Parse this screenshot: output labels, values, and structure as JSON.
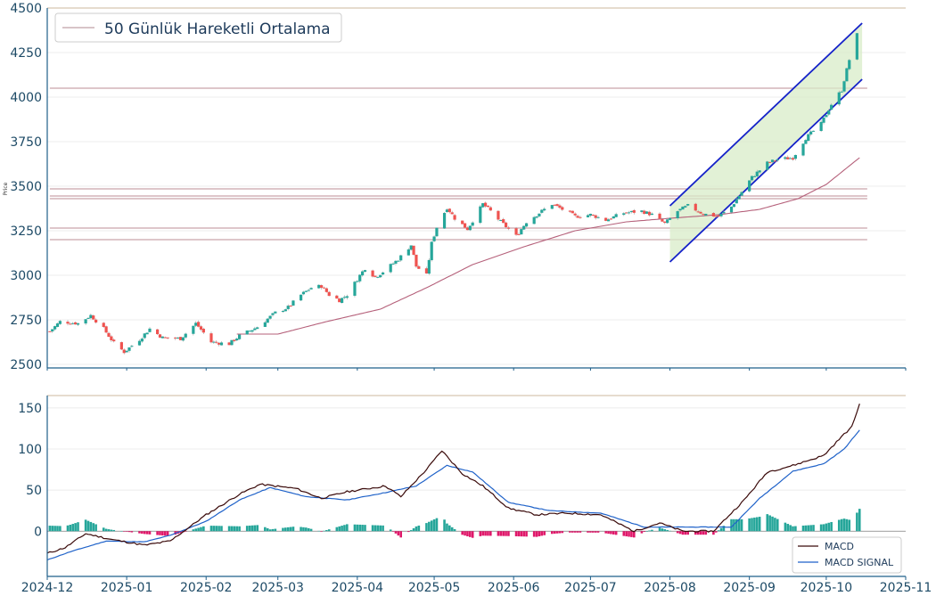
{
  "colors": {
    "up": "#26a69a",
    "down": "#ef5350",
    "ma": "#b5607a",
    "channel": "#1522c9",
    "channel_fill": "#d8ecc8",
    "hline": "#c9a3ab",
    "axis": "#1f5f8a",
    "top_line": "#d7c8b0",
    "macd": "#3a0a0a",
    "signal": "#1f62c9",
    "hist_pos": "#26a69a",
    "hist_neg": "#e0176a",
    "tick_text": "#1d4a66"
  },
  "chart_data": [
    {
      "type": "candlestick",
      "ylabel": "Price",
      "ylim": [
        2480,
        4500
      ],
      "yticks": [
        2500,
        2750,
        3000,
        3250,
        3500,
        3750,
        4000,
        4250,
        4500
      ],
      "legend": {
        "position": "top-left",
        "entries": [
          "50 Günlük Hareketli Ortalama"
        ]
      },
      "grid": true,
      "horizontal_levels": [
        4050,
        3485,
        3445,
        3430,
        3265,
        3200
      ],
      "channel": {
        "start": "2025-08-01",
        "end": "2025-10-15",
        "upper": [
          3390,
          4415
        ],
        "lower": [
          3075,
          4100
        ]
      },
      "close_anchors": [
        [
          "2024-12-02",
          2685
        ],
        [
          "2024-12-06",
          2740
        ],
        [
          "2024-12-13",
          2730
        ],
        [
          "2024-12-18",
          2775
        ],
        [
          "2024-12-23",
          2700
        ],
        [
          "2024-12-27",
          2620
        ],
        [
          "2024-12-31",
          2570
        ],
        [
          "2025-01-06",
          2640
        ],
        [
          "2025-01-10",
          2700
        ],
        [
          "2025-01-15",
          2650
        ],
        [
          "2025-01-22",
          2645
        ],
        [
          "2025-01-28",
          2730
        ],
        [
          "2025-02-03",
          2625
        ],
        [
          "2025-02-10",
          2615
        ],
        [
          "2025-02-14",
          2660
        ],
        [
          "2025-02-21",
          2710
        ],
        [
          "2025-02-28",
          2790
        ],
        [
          "2025-03-05",
          2820
        ],
        [
          "2025-03-10",
          2890
        ],
        [
          "2025-03-14",
          2930
        ],
        [
          "2025-03-18",
          2940
        ],
        [
          "2025-03-21",
          2890
        ],
        [
          "2025-03-25",
          2860
        ],
        [
          "2025-03-28",
          2890
        ],
        [
          "2025-04-02",
          3000
        ],
        [
          "2025-04-04",
          3040
        ],
        [
          "2025-04-08",
          2990
        ],
        [
          "2025-04-11",
          3020
        ],
        [
          "2025-04-17",
          3090
        ],
        [
          "2025-04-22",
          3170
        ],
        [
          "2025-04-24",
          3050
        ],
        [
          "2025-04-28",
          3000
        ],
        [
          "2025-04-30",
          3180
        ],
        [
          "2025-05-02",
          3270
        ],
        [
          "2025-05-06",
          3380
        ],
        [
          "2025-05-09",
          3320
        ],
        [
          "2025-05-14",
          3260
        ],
        [
          "2025-05-20",
          3400
        ],
        [
          "2025-05-23",
          3360
        ],
        [
          "2025-05-27",
          3300
        ],
        [
          "2025-06-02",
          3220
        ],
        [
          "2025-06-06",
          3300
        ],
        [
          "2025-06-10",
          3340
        ],
        [
          "2025-06-16",
          3400
        ],
        [
          "2025-06-20",
          3370
        ],
        [
          "2025-06-25",
          3330
        ],
        [
          "2025-07-01",
          3340
        ],
        [
          "2025-07-07",
          3310
        ],
        [
          "2025-07-14",
          3350
        ],
        [
          "2025-07-21",
          3360
        ],
        [
          "2025-07-25",
          3340
        ],
        [
          "2025-07-30",
          3290
        ],
        [
          "2025-08-04",
          3360
        ],
        [
          "2025-08-08",
          3390
        ],
        [
          "2025-08-14",
          3345
        ],
        [
          "2025-08-20",
          3330
        ],
        [
          "2025-08-25",
          3385
        ],
        [
          "2025-09-02",
          3550
        ],
        [
          "2025-09-08",
          3630
        ],
        [
          "2025-09-12",
          3650
        ],
        [
          "2025-09-18",
          3660
        ],
        [
          "2025-09-23",
          3770
        ],
        [
          "2025-09-29",
          3850
        ],
        [
          "2025-10-03",
          3960
        ],
        [
          "2025-10-07",
          4040
        ],
        [
          "2025-10-10",
          4210
        ],
        [
          "2025-10-13",
          4350
        ]
      ],
      "ma50_anchors": [
        [
          "2025-02-13",
          2670
        ],
        [
          "2025-03-01",
          2670
        ],
        [
          "2025-03-20",
          2740
        ],
        [
          "2025-04-10",
          2810
        ],
        [
          "2025-04-28",
          2930
        ],
        [
          "2025-05-16",
          3060
        ],
        [
          "2025-06-05",
          3160
        ],
        [
          "2025-06-25",
          3250
        ],
        [
          "2025-07-15",
          3300
        ],
        [
          "2025-08-01",
          3320
        ],
        [
          "2025-08-20",
          3340
        ],
        [
          "2025-09-05",
          3370
        ],
        [
          "2025-09-20",
          3430
        ],
        [
          "2025-10-01",
          3510
        ],
        [
          "2025-10-14",
          3660
        ]
      ]
    },
    {
      "type": "line+bar",
      "ylim": [
        -55,
        165
      ],
      "yticks": [
        0,
        50,
        100,
        150
      ],
      "xticks": [
        "2024-12",
        "2025-01",
        "2025-02",
        "2025-03",
        "2025-04",
        "2025-05",
        "2025-06",
        "2025-07",
        "2025-08",
        "2025-09",
        "2025-10",
        "2025-11"
      ],
      "top_level": 165,
      "legend": {
        "position": "bottom-right",
        "entries": [
          "MACD",
          "MACD SIGNAL"
        ]
      },
      "series": [
        {
          "name": "MACD",
          "anchors": [
            [
              "2024-12-01",
              -27
            ],
            [
              "2024-12-08",
              -20
            ],
            [
              "2024-12-16",
              -3
            ],
            [
              "2024-12-26",
              -10
            ],
            [
              "2025-01-08",
              -17
            ],
            [
              "2025-01-18",
              -12
            ],
            [
              "2025-02-01",
              20
            ],
            [
              "2025-02-14",
              45
            ],
            [
              "2025-02-22",
              57
            ],
            [
              "2025-03-08",
              52
            ],
            [
              "2025-03-18",
              40
            ],
            [
              "2025-03-28",
              48
            ],
            [
              "2025-04-12",
              55
            ],
            [
              "2025-04-18",
              42
            ],
            [
              "2025-04-28",
              75
            ],
            [
              "2025-05-04",
              98
            ],
            [
              "2025-05-12",
              70
            ],
            [
              "2025-05-20",
              55
            ],
            [
              "2025-05-30",
              28
            ],
            [
              "2025-06-10",
              20
            ],
            [
              "2025-06-22",
              22
            ],
            [
              "2025-07-05",
              20
            ],
            [
              "2025-07-18",
              0
            ],
            [
              "2025-07-28",
              10
            ],
            [
              "2025-08-06",
              0
            ],
            [
              "2025-08-18",
              0
            ],
            [
              "2025-08-30",
              38
            ],
            [
              "2025-09-08",
              72
            ],
            [
              "2025-09-18",
              80
            ],
            [
              "2025-09-30",
              92
            ],
            [
              "2025-10-07",
              115
            ],
            [
              "2025-10-11",
              127
            ],
            [
              "2025-10-14",
              155
            ]
          ]
        },
        {
          "name": "MACD SIGNAL",
          "anchors": [
            [
              "2024-12-01",
              -35
            ],
            [
              "2024-12-10",
              -25
            ],
            [
              "2024-12-24",
              -12
            ],
            [
              "2025-01-08",
              -13
            ],
            [
              "2025-01-18",
              -5
            ],
            [
              "2025-02-01",
              12
            ],
            [
              "2025-02-14",
              38
            ],
            [
              "2025-02-26",
              53
            ],
            [
              "2025-03-12",
              42
            ],
            [
              "2025-03-28",
              38
            ],
            [
              "2025-04-12",
              47
            ],
            [
              "2025-04-24",
              55
            ],
            [
              "2025-05-06",
              80
            ],
            [
              "2025-05-16",
              72
            ],
            [
              "2025-05-30",
              35
            ],
            [
              "2025-06-15",
              25
            ],
            [
              "2025-07-05",
              22
            ],
            [
              "2025-07-22",
              5
            ],
            [
              "2025-08-10",
              5
            ],
            [
              "2025-08-25",
              5
            ],
            [
              "2025-09-05",
              40
            ],
            [
              "2025-09-18",
              73
            ],
            [
              "2025-09-30",
              82
            ],
            [
              "2025-10-08",
              100
            ],
            [
              "2025-10-14",
              123
            ]
          ]
        }
      ]
    }
  ]
}
